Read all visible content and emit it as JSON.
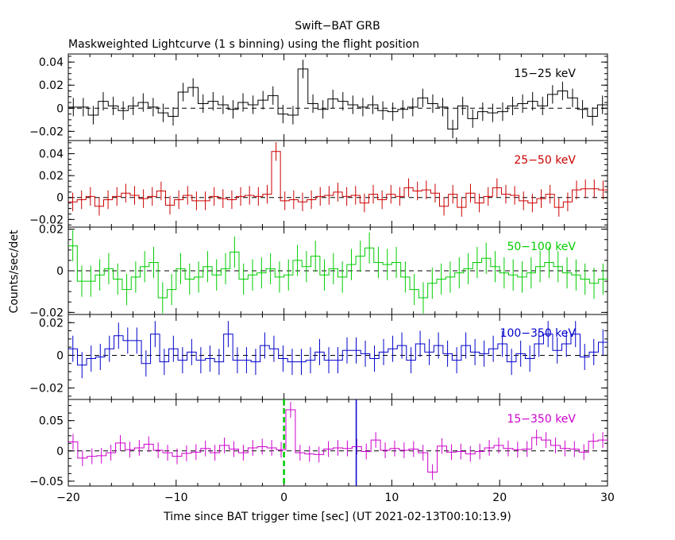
{
  "chart_data": {
    "type": "line",
    "title": "Swift−BAT GRB",
    "subtitle": "Maskweighted Lightcurve (1 s binning) using the flight position",
    "xlabel": "Time since BAT trigger time [sec] (UT 2021-02-13T00:10:13.9)",
    "ylabel": "Counts/sec/det",
    "xlim": [
      -20,
      30
    ],
    "xticks": [
      -20,
      -10,
      0,
      10,
      20,
      30
    ],
    "panels": [
      {
        "name": "15-25",
        "label": "15−25 keV",
        "color": "#000000",
        "ylim": [
          -0.028,
          0.047
        ],
        "yticks": [
          -0.02,
          0,
          0.02,
          0.04
        ],
        "ytick_labels": [
          "−0.02",
          "0",
          "0.02",
          "0.04"
        ],
        "err": 0.008,
        "values": [
          0.001,
          0.001,
          -0.006,
          0.006,
          0.002,
          -0.002,
          0.002,
          0.005,
          0.001,
          -0.004,
          -0.007,
          0.014,
          0.018,
          0.004,
          0.006,
          0.003,
          -0.001,
          0.005,
          0.003,
          0.007,
          0.011,
          -0.005,
          -0.006,
          0.034,
          0.004,
          -0.001,
          0.008,
          0.006,
          0.003,
          0.001,
          0.003,
          -0.002,
          -0.003,
          -0.001,
          0.001,
          0.009,
          0.004,
          0.001,
          -0.018,
          0.002,
          -0.009,
          -0.003,
          -0.004,
          -0.003,
          0.002,
          0.004,
          0.006,
          0.002,
          0.012,
          0.015,
          0.009,
          -0.001,
          -0.007,
          0.003
        ]
      },
      {
        "name": "25-50",
        "label": "25−50 keV",
        "color": "#cc0000",
        "ylim": [
          -0.027,
          0.052
        ],
        "yticks": [
          -0.02,
          0,
          0.02,
          0.04
        ],
        "ytick_labels": [
          "−0.02",
          "0",
          "0.02",
          "0.04"
        ],
        "err": 0.0085,
        "values": [
          -0.004,
          -0.002,
          0.001,
          -0.008,
          -0.002,
          0.001,
          0.004,
          0.002,
          -0.001,
          0.001,
          0.006,
          -0.007,
          -0.002,
          0.002,
          -0.003,
          -0.003,
          0.001,
          -0.001,
          -0.002,
          0.001,
          0.002,
          0.001,
          0.003,
          0.042,
          -0.003,
          -0.002,
          -0.004,
          -0.002,
          0.001,
          0.002,
          0.005,
          0.001,
          0.002,
          -0.005,
          0.003,
          -0.002,
          0.003,
          0.001,
          0.009,
          0.006,
          0.007,
          0.004,
          -0.008,
          0.003,
          -0.009,
          0.004,
          -0.005,
          0.001,
          0.009,
          0.003,
          0.002,
          -0.003,
          -0.005,
          -0.001,
          0.003,
          -0.009,
          -0.004,
          0.007,
          0.008,
          0.008,
          0.007
        ]
      },
      {
        "name": "50-100",
        "label": "50−100 keV",
        "color": "#00cc00",
        "ylim": [
          -0.021,
          0.021
        ],
        "yticks": [
          -0.02,
          0,
          0.02
        ],
        "ytick_labels": [
          "−0.02",
          "0",
          "0.02"
        ],
        "err": 0.0075,
        "values": [
          0.012,
          -0.005,
          -0.005,
          -0.002,
          0.001,
          -0.004,
          -0.009,
          -0.003,
          0.002,
          0.004,
          -0.013,
          -0.009,
          0.001,
          -0.004,
          -0.003,
          0.002,
          -0.002,
          0.001,
          0.009,
          -0.004,
          -0.002,
          -0.001,
          0.001,
          -0.003,
          -0.002,
          0.005,
          0.002,
          0.007,
          -0.002,
          0.001,
          -0.003,
          0.003,
          0.007,
          0.011,
          0.004,
          0.003,
          0.004,
          -0.003,
          -0.009,
          -0.013,
          -0.006,
          -0.004,
          -0.003,
          -0.001,
          0.001,
          0.004,
          0.006,
          0.002,
          -0.001,
          -0.002,
          -0.003,
          -0.001,
          0.002,
          0.004,
          0.002,
          -0.001,
          -0.002,
          -0.004,
          -0.006,
          -0.004
        ]
      },
      {
        "name": "100-350",
        "label": "100−350 keV",
        "color": "#0000cc",
        "ylim": [
          -0.027,
          0.025
        ],
        "yticks": [
          -0.02,
          0,
          0.02
        ],
        "ytick_labels": [
          "−0.02",
          "0",
          "0.02"
        ],
        "err": 0.008,
        "values": [
          0.004,
          -0.006,
          -0.002,
          -0.001,
          0.004,
          0.012,
          0.009,
          0.009,
          -0.005,
          0.013,
          -0.004,
          0.004,
          -0.003,
          0.002,
          -0.003,
          -0.002,
          -0.004,
          0.013,
          -0.003,
          -0.003,
          -0.004,
          0.006,
          0.004,
          -0.002,
          -0.004,
          -0.004,
          -0.003,
          0.002,
          -0.003,
          -0.003,
          0.003,
          0.003,
          0.001,
          -0.002,
          0.002,
          0.004,
          0.006,
          -0.003,
          0.007,
          0.002,
          0.006,
          0.001,
          -0.003,
          0.006,
          0.002,
          0.001,
          0.004,
          0.007,
          -0.004,
          0.001,
          -0.002,
          0.007,
          0.013,
          0.003,
          0.007,
          0.013,
          -0.001,
          0.002,
          0.008
        ]
      },
      {
        "name": "15-350",
        "label": "15−350 keV",
        "color": "#cc00cc",
        "ylim": [
          -0.058,
          0.085
        ],
        "yticks": [
          -0.05,
          0,
          0.05
        ],
        "ytick_labels": [
          "−0.05",
          "0",
          "0.05"
        ],
        "err": 0.013,
        "values": [
          0.015,
          -0.012,
          -0.009,
          -0.008,
          -0.003,
          0.013,
          0.002,
          0.005,
          0.011,
          0.001,
          -0.003,
          -0.009,
          -0.004,
          -0.002,
          0.004,
          -0.003,
          0.009,
          0.003,
          -0.003,
          0.005,
          0.007,
          0.005,
          0.002,
          0.068,
          -0.003,
          -0.005,
          -0.006,
          0.003,
          0.005,
          0.004,
          0.007,
          -0.001,
          0.018,
          0.001,
          0.004,
          0.001,
          0.003,
          -0.003,
          -0.035,
          0.008,
          -0.002,
          -0.001,
          -0.005,
          -0.001,
          0.005,
          0.009,
          0.004,
          0.002,
          0.003,
          0.022,
          0.018,
          0.009,
          0.004,
          0.003,
          -0.002,
          0.016,
          0.018
        ]
      }
    ],
    "trigger_line": {
      "x": 0,
      "color": "#00cc00"
    },
    "extra_marker": {
      "x": 6.7,
      "color": "#0000cc"
    }
  }
}
